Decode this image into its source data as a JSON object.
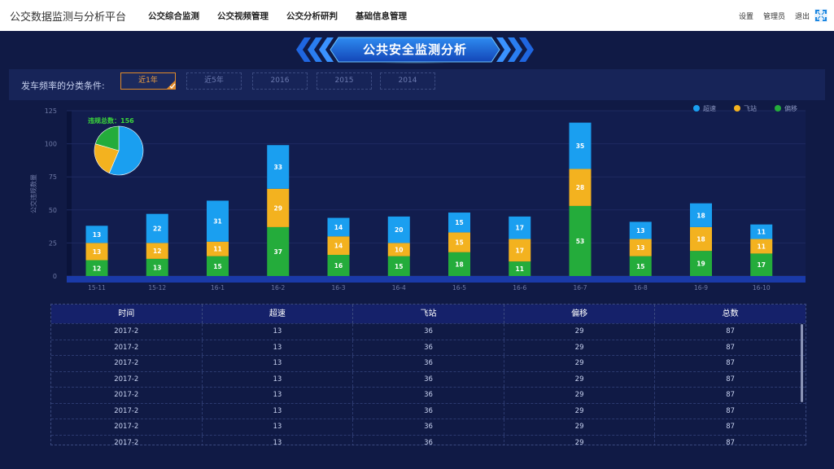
{
  "header": {
    "brand": "公交数据监测与分析平台",
    "nav": [
      "公交综合监测",
      "公交视频管理",
      "公交分析研判",
      "基础信息管理"
    ],
    "settings": "设置",
    "admin": "管理员",
    "logout": "退出"
  },
  "banner": {
    "title": "公共安全监测分析"
  },
  "filter": {
    "label": "发车频率的分类条件:",
    "options": [
      "近1年",
      "近5年",
      "2016",
      "2015",
      "2014"
    ],
    "selected": "近1年"
  },
  "colors": {
    "speeding": "#1a9ff0",
    "skip_stop": "#f3b21f",
    "deviation": "#24ac3b",
    "accent": "#e08a2a"
  },
  "chart_data": {
    "type": "bar",
    "stacked": true,
    "ylabel": "公交违规数量",
    "ylim": [
      0,
      125
    ],
    "yticks": [
      0,
      25,
      50,
      75,
      100,
      125
    ],
    "categories": [
      "15-11",
      "15-12",
      "16-1",
      "16-2",
      "16-3",
      "16-4",
      "16-5",
      "16-6",
      "16-7",
      "16-8",
      "16-9",
      "16-10"
    ],
    "series": [
      {
        "name": "偏移",
        "color": "#24ac3b",
        "values": [
          12,
          13,
          15,
          37,
          16,
          15,
          18,
          11,
          53,
          15,
          19,
          17
        ]
      },
      {
        "name": "飞站",
        "color": "#f3b21f",
        "values": [
          13,
          12,
          11,
          29,
          14,
          10,
          15,
          17,
          28,
          13,
          18,
          11
        ]
      },
      {
        "name": "超速",
        "color": "#1a9ff0",
        "values": [
          13,
          22,
          31,
          33,
          14,
          20,
          15,
          17,
          35,
          13,
          18,
          11
        ]
      }
    ],
    "legend": [
      "超速",
      "飞站",
      "偏移"
    ],
    "legend_position": "top-right",
    "pie": {
      "title": "违规总数：156",
      "slices": [
        {
          "name": "超速",
          "value": 88,
          "color": "#1a9ff0"
        },
        {
          "name": "飞站",
          "value": 36,
          "color": "#f3b21f"
        },
        {
          "name": "偏移",
          "value": 32,
          "color": "#24ac3b"
        }
      ]
    }
  },
  "table": {
    "columns": [
      "时间",
      "超速",
      "飞站",
      "偏移",
      "总数"
    ],
    "rows": [
      [
        "2017-2",
        "13",
        "36",
        "29",
        "87"
      ],
      [
        "2017-2",
        "13",
        "36",
        "29",
        "87"
      ],
      [
        "2017-2",
        "13",
        "36",
        "29",
        "87"
      ],
      [
        "2017-2",
        "13",
        "36",
        "29",
        "87"
      ],
      [
        "2017-2",
        "13",
        "36",
        "29",
        "87"
      ],
      [
        "2017-2",
        "13",
        "36",
        "29",
        "87"
      ],
      [
        "2017-2",
        "13",
        "36",
        "29",
        "87"
      ],
      [
        "2017-2",
        "13",
        "36",
        "29",
        "87"
      ]
    ]
  }
}
